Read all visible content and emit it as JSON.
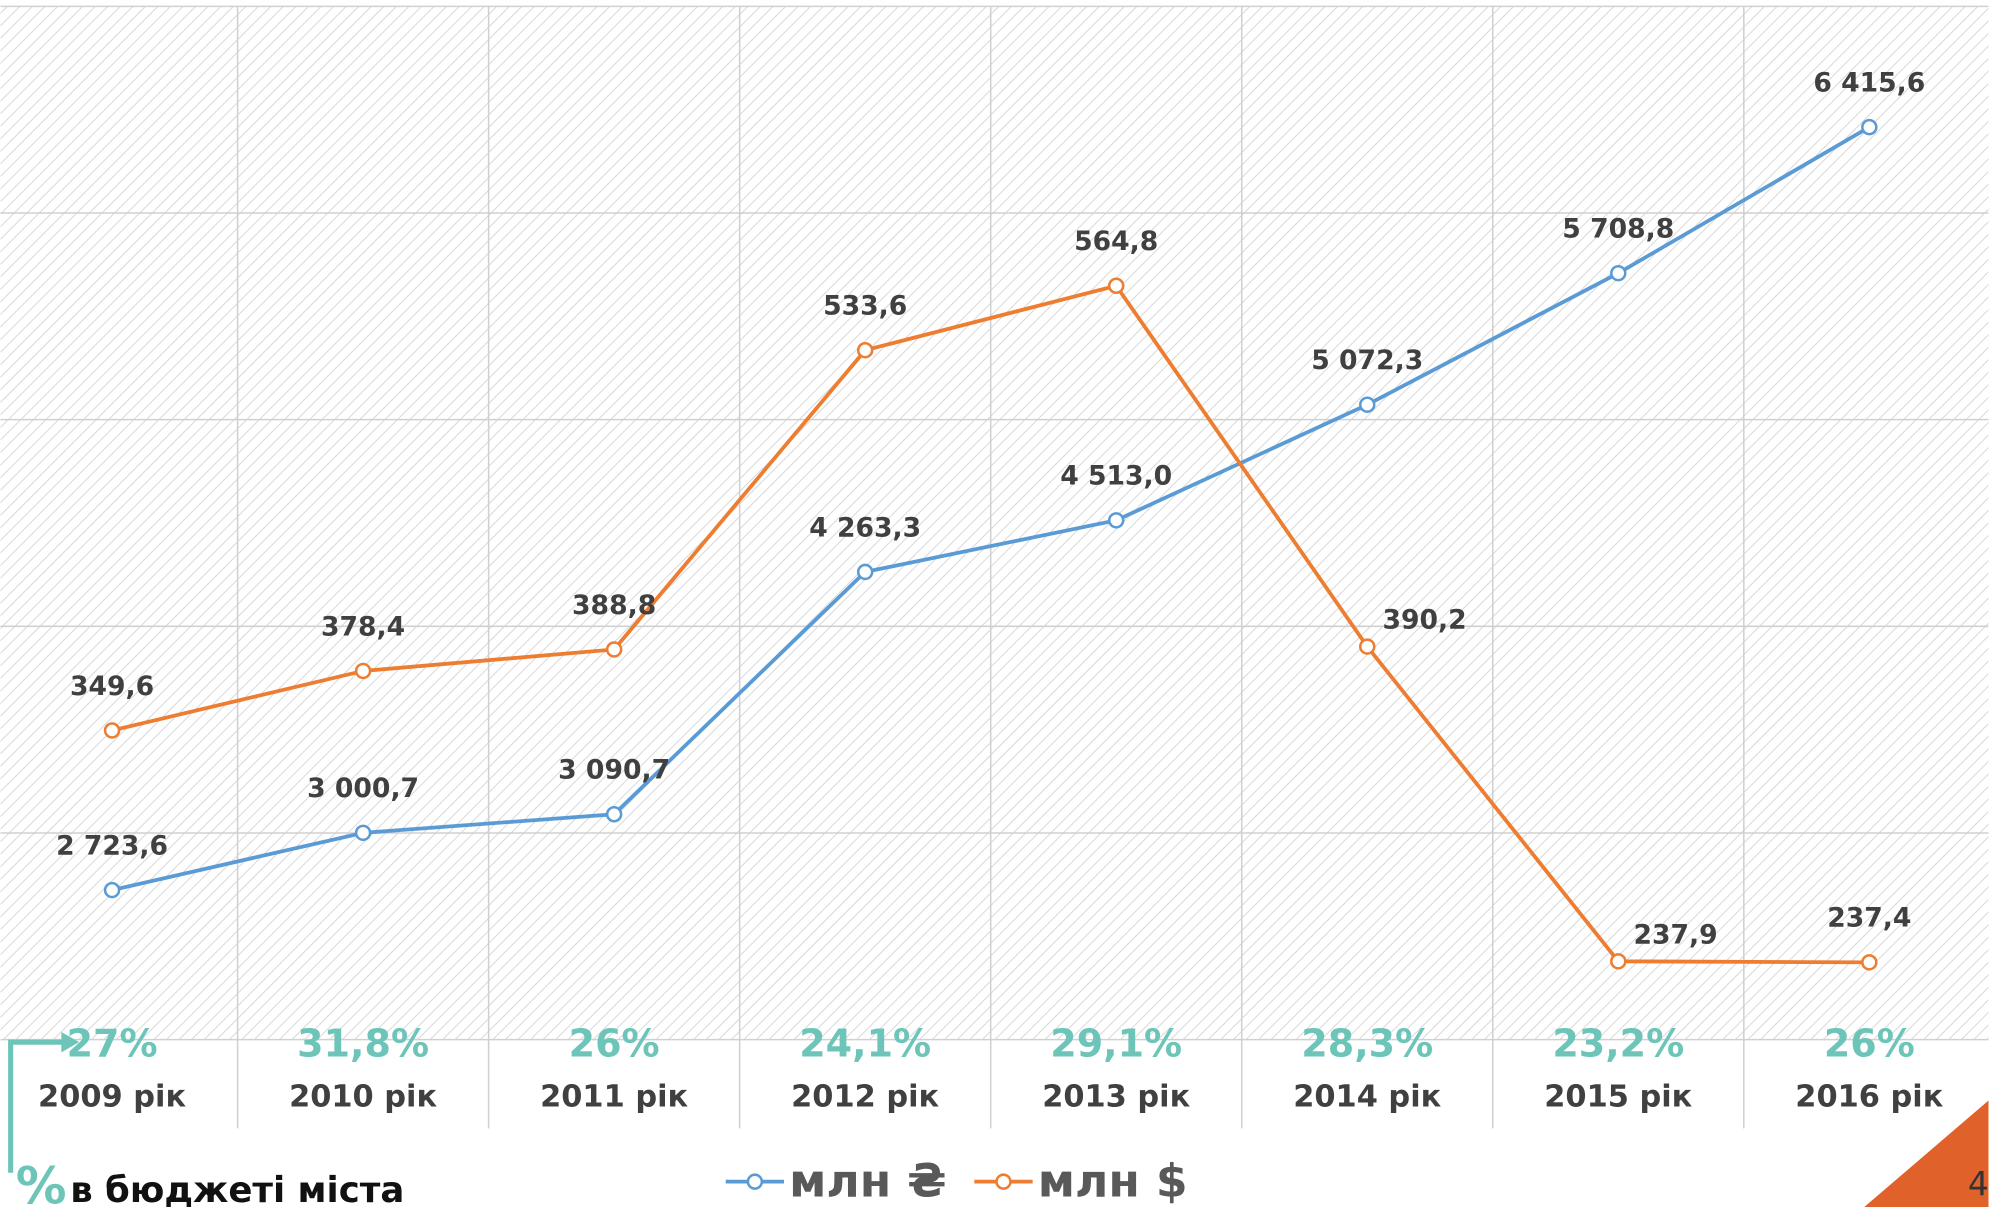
{
  "chart_data": {
    "type": "line",
    "categories": [
      "2009 рік",
      "2010 рік",
      "2011 рік",
      "2012 рік",
      "2013 рік",
      "2014 рік",
      "2015 рік",
      "2016 рік"
    ],
    "share_labels": [
      "27%",
      "31,8%",
      "26%",
      "24,1%",
      "29,1%",
      "28,3%",
      "23,2%",
      "26%"
    ],
    "series": [
      {
        "name": "млн ₴",
        "color": "#5b9bd5",
        "values": [
          2723.6,
          3000.7,
          3090.7,
          4263.3,
          4513.0,
          5072.3,
          5708.8,
          6415.6
        ],
        "value_labels": [
          "2 723,6",
          "3 000,7",
          "3 090,7",
          "4 263,3",
          "4 513,0",
          "5 072,3",
          "5 708,8",
          "6 415,6"
        ]
      },
      {
        "name": "млн $",
        "color": "#ed7d31",
        "axis": "y2",
        "values": [
          349.6,
          378.4,
          388.8,
          533.6,
          564.8,
          390.2,
          237.9,
          237.4
        ],
        "value_labels": [
          "349,6",
          "378,4",
          "388,8",
          "533,6",
          "564,8",
          "390,2",
          "237,9",
          "237,4"
        ]
      }
    ],
    "ylim": [
      2000,
      7000
    ],
    "y2lim": [
      200,
      700
    ],
    "share_symbol": "%",
    "share_caption": "в бюджеті міста",
    "page_number": "4"
  }
}
